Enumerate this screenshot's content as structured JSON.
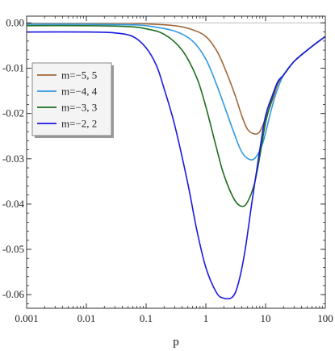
{
  "chart_data": {
    "type": "line",
    "xlabel": "p",
    "ylabel": "",
    "xscale": "log",
    "xlim": [
      0.001,
      100
    ],
    "ylim": [
      -0.063,
      0.0015
    ],
    "xticks": [
      {
        "value": 0.001,
        "label": "0.001"
      },
      {
        "value": 0.01,
        "label": "0.01"
      },
      {
        "value": 0.1,
        "label": "0.1"
      },
      {
        "value": 1,
        "label": "1"
      },
      {
        "value": 10,
        "label": "10"
      },
      {
        "value": 100,
        "label": "100"
      }
    ],
    "yticks": [
      {
        "value": 0.0,
        "label": "0.00"
      },
      {
        "value": -0.01,
        "label": "-0.01"
      },
      {
        "value": -0.02,
        "label": "-0.02"
      },
      {
        "value": -0.03,
        "label": "-0.03"
      },
      {
        "value": -0.04,
        "label": "-0.04"
      },
      {
        "value": -0.05,
        "label": "-0.05"
      },
      {
        "value": -0.06,
        "label": "-0.06"
      }
    ],
    "grid": false,
    "legend_position": "left-middle",
    "series": [
      {
        "name": "m=−5, 5",
        "color": "#a0693c",
        "points": [
          [
            0.001,
            -0.0001
          ],
          [
            0.01,
            -0.0001
          ],
          [
            0.05,
            -0.0001
          ],
          [
            0.1,
            -0.0002
          ],
          [
            0.3,
            -0.0006
          ],
          [
            0.6,
            -0.0015
          ],
          [
            1,
            -0.003
          ],
          [
            1.5,
            -0.006
          ],
          [
            2,
            -0.0095
          ],
          [
            3,
            -0.0155
          ],
          [
            4,
            -0.0205
          ],
          [
            5,
            -0.0235
          ],
          [
            6.5,
            -0.0245
          ],
          [
            8,
            -0.024
          ],
          [
            10,
            -0.021
          ],
          [
            13,
            -0.017
          ],
          [
            16,
            -0.0135
          ],
          [
            20,
            -0.0115
          ],
          [
            30,
            -0.0085
          ],
          [
            50,
            -0.006
          ],
          [
            70,
            -0.0045
          ],
          [
            100,
            -0.003
          ]
        ]
      },
      {
        "name": "m=−4, 4",
        "color": "#3399dd",
        "points": [
          [
            0.001,
            -0.0003
          ],
          [
            0.01,
            -0.0003
          ],
          [
            0.05,
            -0.0004
          ],
          [
            0.1,
            -0.0006
          ],
          [
            0.3,
            -0.0018
          ],
          [
            0.6,
            -0.004
          ],
          [
            1,
            -0.008
          ],
          [
            1.5,
            -0.0135
          ],
          [
            2,
            -0.018
          ],
          [
            3,
            -0.0245
          ],
          [
            4,
            -0.0285
          ],
          [
            5.5,
            -0.0302
          ],
          [
            7,
            -0.0295
          ],
          [
            9,
            -0.0265
          ],
          [
            12,
            -0.02
          ],
          [
            15,
            -0.0155
          ],
          [
            20,
            -0.0115
          ],
          [
            30,
            -0.0085
          ],
          [
            50,
            -0.006
          ],
          [
            70,
            -0.0045
          ],
          [
            100,
            -0.003
          ]
        ]
      },
      {
        "name": "m=−3, 3",
        "color": "#1e6e1e",
        "points": [
          [
            0.001,
            -0.0006
          ],
          [
            0.01,
            -0.0006
          ],
          [
            0.05,
            -0.0008
          ],
          [
            0.1,
            -0.0013
          ],
          [
            0.2,
            -0.0025
          ],
          [
            0.4,
            -0.006
          ],
          [
            0.7,
            -0.012
          ],
          [
            1,
            -0.0185
          ],
          [
            1.5,
            -0.0275
          ],
          [
            2,
            -0.0335
          ],
          [
            3,
            -0.039
          ],
          [
            4,
            -0.0405
          ],
          [
            5,
            -0.0395
          ],
          [
            6.5,
            -0.0355
          ],
          [
            8,
            -0.0295
          ],
          [
            10,
            -0.022
          ],
          [
            13,
            -0.0165
          ],
          [
            16,
            -0.013
          ],
          [
            20,
            -0.0115
          ],
          [
            30,
            -0.0085
          ],
          [
            50,
            -0.006
          ],
          [
            70,
            -0.0045
          ],
          [
            100,
            -0.003
          ]
        ]
      },
      {
        "name": "m=−2, 2",
        "color": "#1a1ae0",
        "points": [
          [
            0.001,
            -0.002
          ],
          [
            0.01,
            -0.002
          ],
          [
            0.03,
            -0.0022
          ],
          [
            0.06,
            -0.003
          ],
          [
            0.1,
            -0.0055
          ],
          [
            0.15,
            -0.0095
          ],
          [
            0.2,
            -0.0145
          ],
          [
            0.3,
            -0.0225
          ],
          [
            0.5,
            -0.0355
          ],
          [
            0.7,
            -0.0455
          ],
          [
            1,
            -0.054
          ],
          [
            1.5,
            -0.0595
          ],
          [
            2,
            -0.0608
          ],
          [
            2.8,
            -0.0605
          ],
          [
            3.5,
            -0.0575
          ],
          [
            4.5,
            -0.0505
          ],
          [
            6,
            -0.039
          ],
          [
            8,
            -0.028
          ],
          [
            10,
            -0.0205
          ],
          [
            13,
            -0.016
          ],
          [
            16,
            -0.013
          ],
          [
            20,
            -0.0115
          ],
          [
            30,
            -0.0085
          ],
          [
            50,
            -0.006
          ],
          [
            70,
            -0.0045
          ],
          [
            100,
            -0.003
          ]
        ]
      }
    ]
  }
}
